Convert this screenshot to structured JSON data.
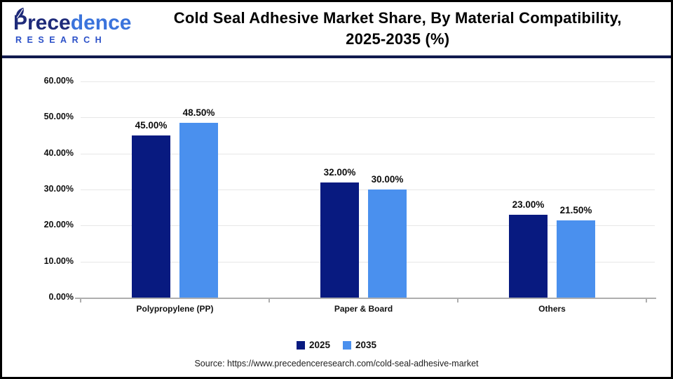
{
  "header": {
    "logo": {
      "name_dark": "Prece",
      "name_blue": "dence",
      "subtitle": "RESEARCH"
    },
    "title_line1": "Cold Seal Adhesive Market Share, By Material Compatibility,",
    "title_line2": "2025-2035 (%)"
  },
  "chart_data": {
    "type": "bar",
    "categories": [
      "Polypropylene (PP)",
      "Paper & Board",
      "Others"
    ],
    "series": [
      {
        "name": "2025",
        "color": "#081a80",
        "values": [
          45.0,
          32.0,
          23.0
        ],
        "labels": [
          "45.00%",
          "32.00%",
          "23.00%"
        ]
      },
      {
        "name": "2035",
        "color": "#4a90ee",
        "values": [
          48.5,
          30.0,
          21.5
        ],
        "labels": [
          "48.50%",
          "30.00%",
          "21.50%"
        ]
      }
    ],
    "ylim": [
      0,
      60
    ],
    "ytick_step": 10,
    "ytick_labels": [
      "0.00%",
      "10.00%",
      "20.00%",
      "30.00%",
      "40.00%",
      "50.00%",
      "60.00%"
    ],
    "grid": true,
    "legend_position": "bottom"
  },
  "source": "Source: https://www.precedenceresearch.com/cold-seal-adhesive-market",
  "colors": {
    "bar_2025": "#081a80",
    "bar_2035": "#4a90ee",
    "header_divider": "#111a4e",
    "axis": "#aeaeae",
    "grid": "#e7e7e7"
  }
}
